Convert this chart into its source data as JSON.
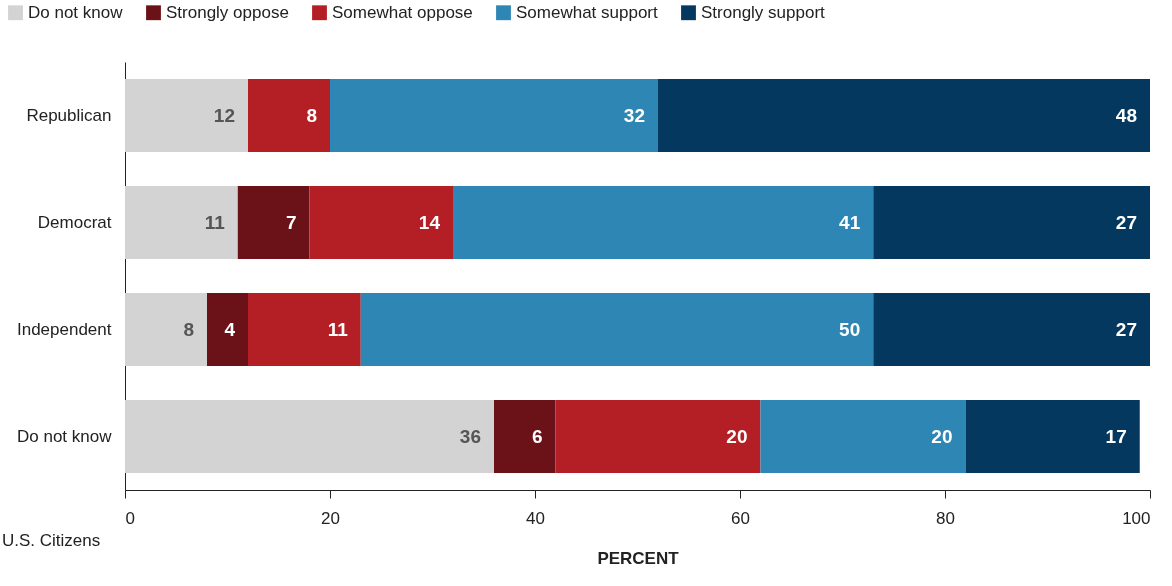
{
  "chart_data": {
    "type": "bar",
    "orientation": "horizontal",
    "stacked": true,
    "xlabel": "PERCENT",
    "categories": [
      "Republican",
      "Democrat",
      "Independent",
      "Do not know"
    ],
    "series": [
      {
        "name": "Do not know",
        "color": "#d3d3d3",
        "values": [
          12,
          11,
          8,
          36
        ]
      },
      {
        "name": "Strongly oppose",
        "color": "#6b1219",
        "values": [
          null,
          7,
          4,
          6
        ]
      },
      {
        "name": "Somewhat oppose",
        "color": "#b41f25",
        "values": [
          8,
          14,
          11,
          20
        ]
      },
      {
        "name": "Somewhat support",
        "color": "#2e86b5",
        "values": [
          32,
          41,
          50,
          20
        ]
      },
      {
        "name": "Strongly support",
        "color": "#04385f",
        "values": [
          48,
          27,
          27,
          17
        ]
      }
    ],
    "xlim": [
      0,
      100
    ],
    "xticks": [
      0,
      20,
      40,
      60,
      80,
      100
    ],
    "data_labels": true,
    "legend": "top left",
    "grid": false,
    "annotations": [
      "U.S. Citizens"
    ]
  }
}
